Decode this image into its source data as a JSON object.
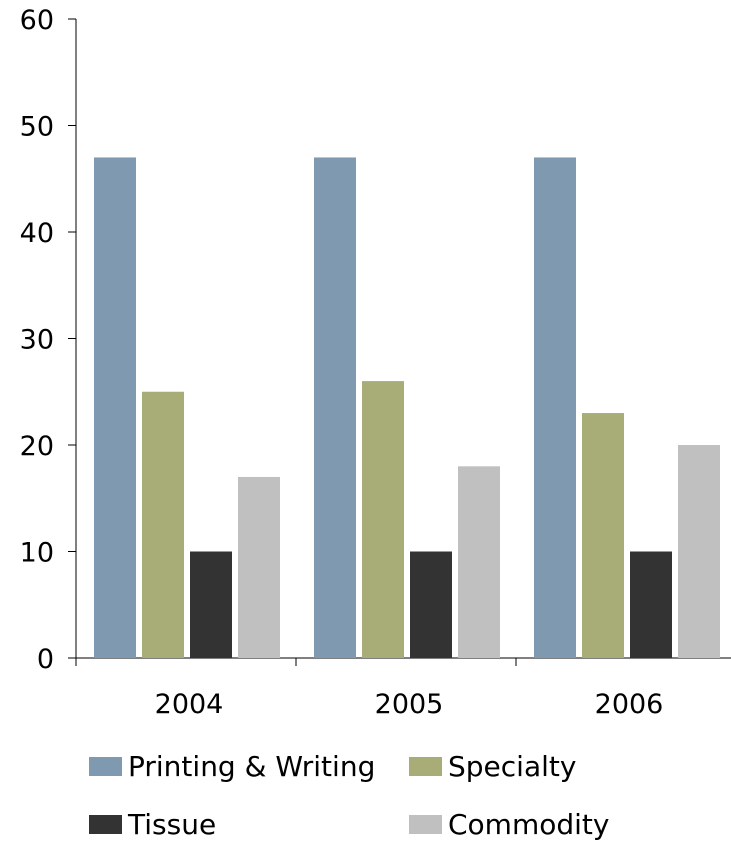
{
  "chart_data": {
    "type": "bar",
    "categories": [
      "2004",
      "2005",
      "2006"
    ],
    "series": [
      {
        "name": "Printing & Writing",
        "values": [
          47,
          47,
          47
        ],
        "color": "#7f9ab0"
      },
      {
        "name": "Specialty",
        "values": [
          25,
          26,
          23
        ],
        "color": "#a8ac76"
      },
      {
        "name": "Tissue",
        "values": [
          10,
          10,
          10
        ],
        "color": "#333333"
      },
      {
        "name": "Commodity",
        "values": [
          17,
          18,
          20
        ],
        "color": "#c0c0c0"
      }
    ],
    "ylim": [
      0,
      60
    ],
    "yticks": [
      "0",
      "10",
      "20",
      "30",
      "40",
      "50",
      "60"
    ],
    "grid": false,
    "legend_position": "bottom"
  }
}
